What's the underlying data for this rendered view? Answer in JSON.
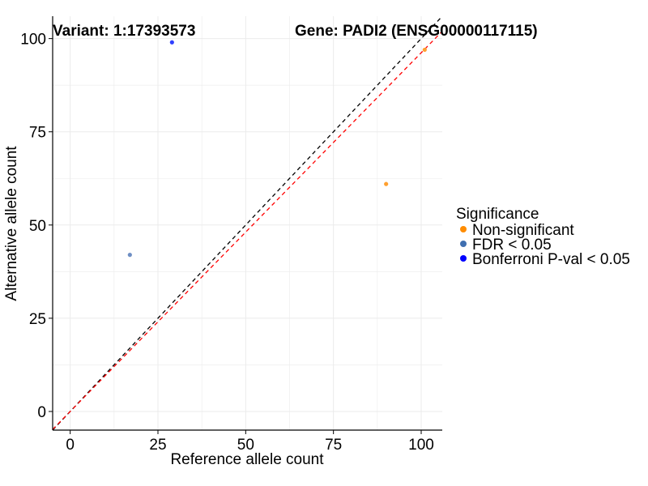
{
  "chart_data": {
    "type": "scatter",
    "title_left": "Variant: 1:17393573",
    "title_right": "Gene: PADI2 (ENSG00000117115)",
    "xlabel": "Reference allele count",
    "ylabel": "Alternative allele count",
    "xlim": [
      -5,
      106
    ],
    "ylim": [
      -5,
      106
    ],
    "xticks": [
      0,
      25,
      50,
      75,
      100
    ],
    "yticks": [
      0,
      25,
      50,
      75,
      100
    ],
    "grid": true,
    "legend": {
      "title": "Significance",
      "position": "right",
      "entries": [
        {
          "label": "Non-significant",
          "color": "#FF8C00"
        },
        {
          "label": "FDR < 0.05",
          "color": "#3F6FB0"
        },
        {
          "label": "Bonferroni P-val < 0.05",
          "color": "#0000FF"
        }
      ]
    },
    "points": [
      {
        "x": 101,
        "y": 97,
        "group": "Non-significant",
        "color": "#FFA030"
      },
      {
        "x": 90,
        "y": 61,
        "group": "Non-significant",
        "color": "#FFA030"
      },
      {
        "x": 17,
        "y": 42,
        "group": "FDR < 0.05",
        "color": "#6F8FC4"
      },
      {
        "x": 29,
        "y": 99,
        "group": "Bonferroni P-val < 0.05",
        "color": "#3040FF"
      }
    ],
    "reference_lines": [
      {
        "name": "identity",
        "slope": 1.0,
        "intercept": 0,
        "color": "#000000",
        "style": "dashed"
      },
      {
        "name": "fit",
        "slope": 0.962,
        "intercept": 0,
        "color": "#FF0000",
        "style": "dashed"
      }
    ]
  }
}
